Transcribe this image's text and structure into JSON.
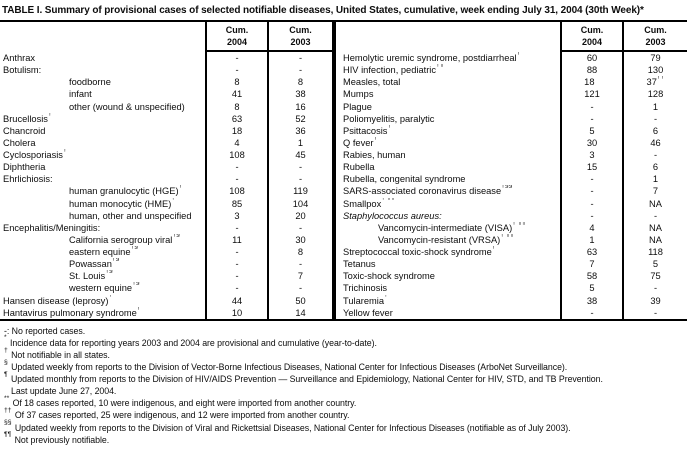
{
  "title": "TABLE I. Summary of provisional cases of selected notifiable diseases, United States, cumulative, week ending July 31, 2004 (30th Week)*",
  "columns": {
    "cum_label": "Cum.",
    "year_2004": "2004",
    "year_2003": "2003"
  },
  "colors": {
    "text": "#0d0d0d",
    "rule": "#000000",
    "background": "#ffffff"
  },
  "tables": [
    {
      "side": "left",
      "rows": [
        {
          "label": "Anthrax",
          "c04": "-",
          "c03": "-"
        },
        {
          "label": "Botulism:",
          "c04": "-",
          "c03": "-"
        },
        {
          "label": "foodborne",
          "indent": true,
          "c04": "8",
          "c03": "8"
        },
        {
          "label": "infant",
          "indent": true,
          "c04": "41",
          "c03": "38"
        },
        {
          "label": "other (wound & unspecified)",
          "indent": true,
          "c04": "8",
          "c03": "16"
        },
        {
          "label": "Brucellosis",
          "mark": "†",
          "c04": "63",
          "c03": "52"
        },
        {
          "label": "Chancroid",
          "c04": "18",
          "c03": "36"
        },
        {
          "label": "Cholera",
          "c04": "4",
          "c03": "1"
        },
        {
          "label": "Cyclosporiasis",
          "mark": "†",
          "c04": "108",
          "c03": "45"
        },
        {
          "label": "Diphtheria",
          "c04": "-",
          "c03": "-"
        },
        {
          "label": "Ehrlichiosis:",
          "c04": "-",
          "c03": "-"
        },
        {
          "label": "human granulocytic (HGE)",
          "mark": "†",
          "indent": true,
          "c04": "108",
          "c03": "119"
        },
        {
          "label": "human monocytic (HME)",
          "mark": "†",
          "indent": true,
          "c04": "85",
          "c03": "104"
        },
        {
          "label": "human, other and unspecified",
          "indent": true,
          "c04": "3",
          "c03": "20"
        },
        {
          "label": "Encephalitis/Meningitis:",
          "c04": "-",
          "c03": "-"
        },
        {
          "label": "California serogroup viral",
          "mark": "†§",
          "indent": true,
          "c04": "11",
          "c03": "30"
        },
        {
          "label": "eastern equine",
          "mark": "†§",
          "indent": true,
          "c04": "-",
          "c03": "8"
        },
        {
          "label": "Powassan",
          "mark": "†§",
          "indent": true,
          "c04": "-",
          "c03": "-"
        },
        {
          "label": "St. Louis",
          "mark": "†§",
          "indent": true,
          "c04": "-",
          "c03": "7"
        },
        {
          "label": "western equine",
          "mark": "†§",
          "indent": true,
          "c04": "-",
          "c03": "-"
        },
        {
          "label": "Hansen disease (leprosy)",
          "mark": "†",
          "c04": "44",
          "c03": "50"
        },
        {
          "label": "Hantavirus pulmonary syndrome",
          "mark": "†",
          "c04": "10",
          "c03": "14"
        }
      ]
    },
    {
      "side": "right",
      "rows": [
        {
          "label": "Hemolytic uremic syndrome, postdiarrheal",
          "mark": "†",
          "c04": "60",
          "c03": "79"
        },
        {
          "label": "HIV infection, pediatric",
          "mark": "†¶",
          "c04": "88",
          "c03": "130"
        },
        {
          "label": "Measles, total",
          "c04": "18",
          "c04mark": "**",
          "c03": "37",
          "c03mark": "††"
        },
        {
          "label": "Mumps",
          "c04": "121",
          "c03": "128"
        },
        {
          "label": "Plague",
          "c04": "-",
          "c03": "1"
        },
        {
          "label": "Poliomyelitis, paralytic",
          "c04": "-",
          "c03": "-"
        },
        {
          "label": "Psittacosis",
          "mark": "†",
          "c04": "5",
          "c03": "6"
        },
        {
          "label": "Q fever",
          "mark": "†",
          "c04": "30",
          "c03": "46"
        },
        {
          "label": "Rabies, human",
          "c04": "3",
          "c03": "-"
        },
        {
          "label": "Rubella",
          "c04": "15",
          "c03": "6"
        },
        {
          "label": "Rubella, congenital syndrome",
          "c04": "-",
          "c03": "1"
        },
        {
          "label": "SARS-associated coronavirus disease",
          "mark": "†§§",
          "c04": "-",
          "c03": "7"
        },
        {
          "label": "Smallpox",
          "mark": "† ¶¶",
          "c04": "-",
          "c03": "NA"
        },
        {
          "label": "Staphylococcus aureus:",
          "italic": true,
          "c04": "-",
          "c03": "-"
        },
        {
          "label": "Vancomycin-intermediate (VISA)",
          "mark": "† ¶¶",
          "indent": true,
          "c04": "4",
          "c03": "NA"
        },
        {
          "label": "Vancomycin-resistant (VRSA)",
          "mark": "† ¶¶",
          "indent": true,
          "c04": "1",
          "c03": "NA"
        },
        {
          "label": "Streptococcal toxic-shock syndrome",
          "mark": "†",
          "c04": "63",
          "c03": "118"
        },
        {
          "label": "Tetanus",
          "c04": "7",
          "c03": "5"
        },
        {
          "label": "Toxic-shock syndrome",
          "c04": "58",
          "c03": "75"
        },
        {
          "label": "Trichinosis",
          "c04": "5",
          "c03": "-"
        },
        {
          "label": "Tularemia",
          "mark": "†",
          "c04": "38",
          "c03": "39"
        },
        {
          "label": "Yellow fever",
          "c04": "-",
          "c03": "-"
        }
      ]
    }
  ],
  "footnotes": [
    {
      "mark": "-:",
      "sup": false,
      "text": "No reported cases."
    },
    {
      "mark": "*",
      "sup": true,
      "text": "Incidence data for reporting years 2003 and 2004 are provisional and cumulative (year-to-date)."
    },
    {
      "mark": "†",
      "sup": true,
      "text": "Not notifiable in all states."
    },
    {
      "mark": "§",
      "sup": true,
      "text": "Updated weekly from reports to the Division of Vector-Borne Infectious Diseases, National Center for Infectious Diseases (ArboNet Surveillance)."
    },
    {
      "mark": "¶",
      "sup": true,
      "text": "Updated monthly from reports to the Division of HIV/AIDS Prevention — Surveillance and Epidemiology, National Center for HIV, STD, and TB Prevention."
    },
    {
      "mark": "",
      "sup": false,
      "cont": true,
      "text": "Last update June 27, 2004."
    },
    {
      "mark": "**",
      "sup": true,
      "text": "Of 18 cases reported, 10 were indigenous, and eight were imported from another country."
    },
    {
      "mark": "††",
      "sup": true,
      "text": "Of 37 cases reported, 25 were indigenous, and 12 were imported from another country."
    },
    {
      "mark": "§§",
      "sup": true,
      "text": "Updated weekly from reports to the Division of Viral and Rickettsial Diseases, National Center for Infectious Diseases (notifiable as of July 2003)."
    },
    {
      "mark": "¶¶",
      "sup": true,
      "text": "Not previously notifiable."
    }
  ]
}
